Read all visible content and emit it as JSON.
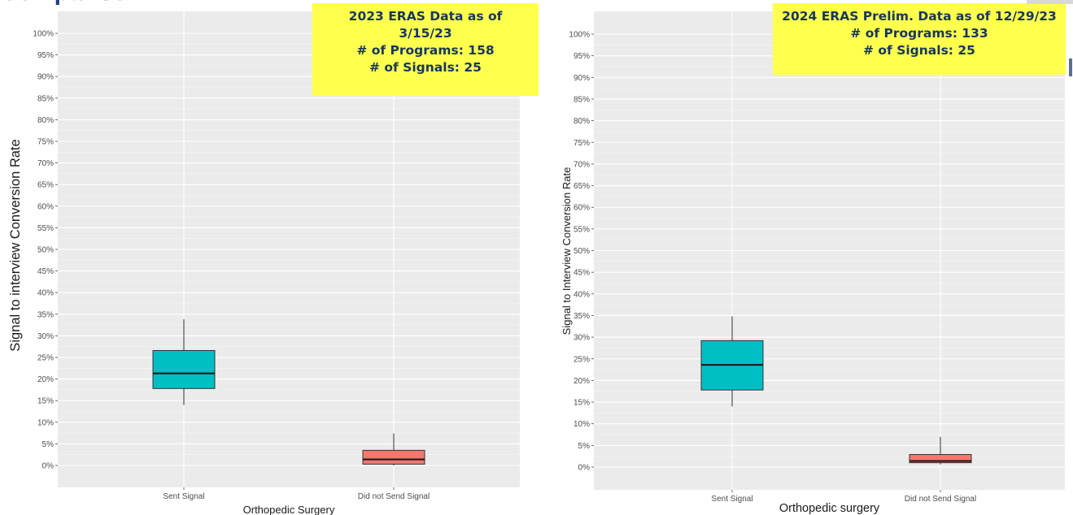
{
  "header": {
    "title": "Comparison"
  },
  "callouts": [
    {
      "lines": [
        "2023 ERAS Data as of",
        "3/15/23",
        "# of Programs: 158",
        "# of Signals: 25"
      ]
    },
    {
      "lines": [
        "2024 ERAS Prelim. Data as of 12/29/23",
        "# of Programs: 133",
        "# of Signals: 25"
      ]
    }
  ],
  "colors": {
    "panel_bg": "#ebebeb",
    "grid": "#ffffff",
    "sent": "#00bfc4",
    "not_sent": "#f8766d",
    "callout_bg": "#ffff4d",
    "callout_text": "#17375e"
  },
  "chart_data": [
    {
      "type": "box",
      "title": "",
      "xlabel": "Orthopedic Surgery",
      "ylabel": "Signal to interview Conversion Rate",
      "categories": [
        "Sent Signal",
        "Did not Send Signal"
      ],
      "y_ticks": [
        "0%",
        "5%",
        "10%",
        "15%",
        "20%",
        "25%",
        "30%",
        "35%",
        "40%",
        "45%",
        "50%",
        "55%",
        "60%",
        "65%",
        "70%",
        "75%",
        "80%",
        "85%",
        "90%",
        "95%",
        "100%"
      ],
      "ylim": [
        -4,
        105
      ],
      "grid": true,
      "series": [
        {
          "fill": "#00bfc4",
          "whisker_low": 14,
          "q1": 17.8,
          "median": 21.3,
          "q3": 26.6,
          "whisker_high": 33.8
        },
        {
          "fill": "#f8766d",
          "whisker_low": 0,
          "q1": 0.3,
          "median": 1.4,
          "q3": 3.5,
          "whisker_high": 7.4
        }
      ]
    },
    {
      "type": "box",
      "title": "",
      "xlabel": "Orthopedic surgery",
      "ylabel": "Signal to Interview Conversion Rate",
      "categories": [
        "Sent Signal",
        "Did not Send Signal"
      ],
      "y_ticks": [
        "0%",
        "5%",
        "10%",
        "15%",
        "20%",
        "25%",
        "30%",
        "35%",
        "40%",
        "45%",
        "50%",
        "55%",
        "60%",
        "65%",
        "70%",
        "75%",
        "80%",
        "85%",
        "90%",
        "95%",
        "100%"
      ],
      "ylim": [
        -4,
        105
      ],
      "grid": true,
      "series": [
        {
          "fill": "#00bfc4",
          "whisker_low": 14,
          "q1": 17.8,
          "median": 23.6,
          "q3": 29.2,
          "whisker_high": 34.8
        },
        {
          "fill": "#f8766d",
          "whisker_low": 0.6,
          "q1": 1,
          "median": 1.4,
          "q3": 2.9,
          "whisker_high": 7
        }
      ]
    }
  ]
}
